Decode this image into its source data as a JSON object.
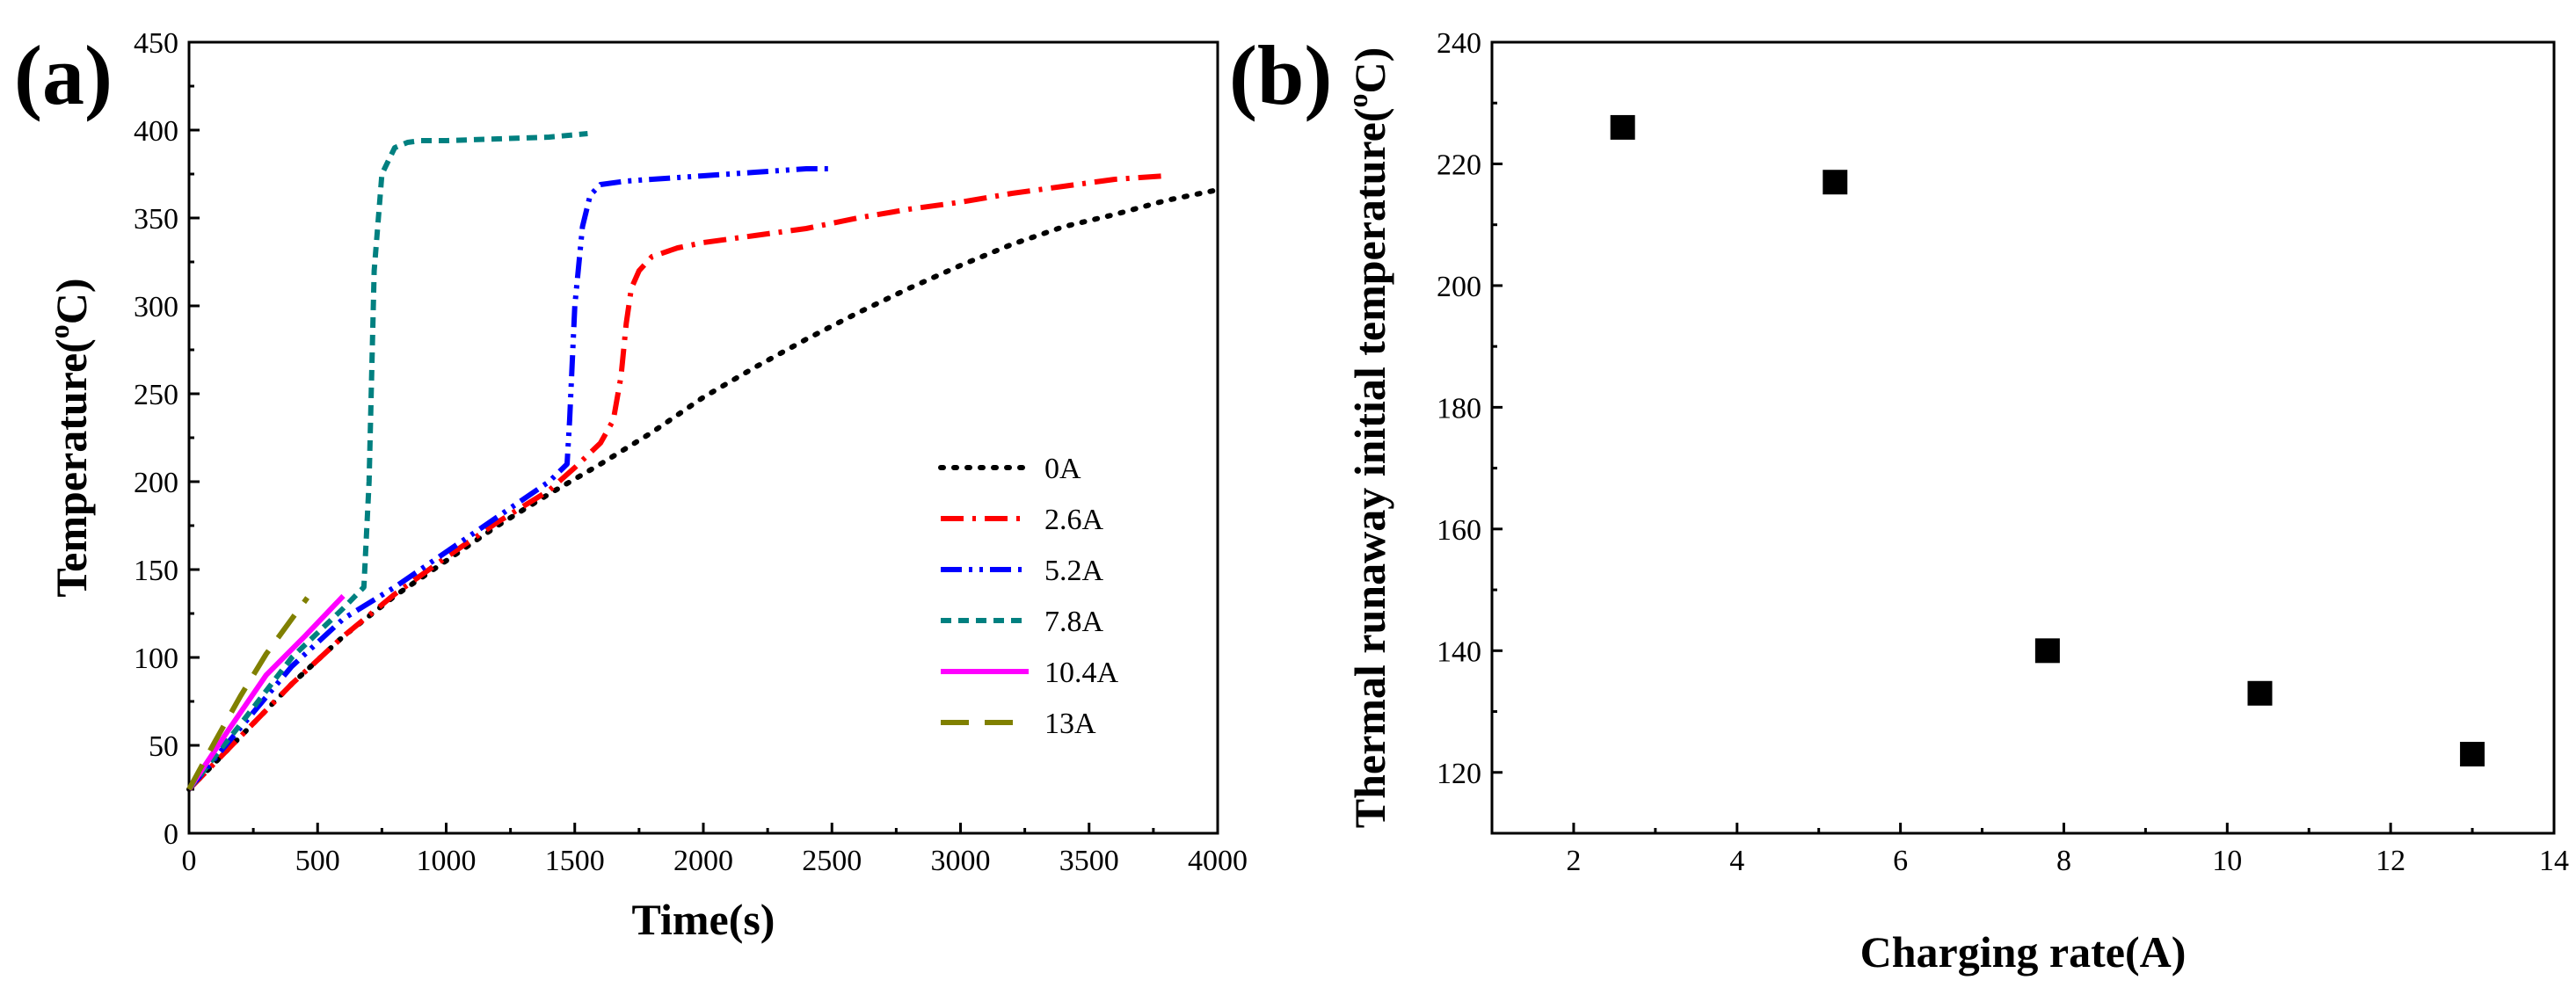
{
  "chart_data": [
    {
      "type": "line",
      "panel_label": "(a)",
      "xlabel": "Time(s)",
      "ylabel_main": "Temperature(",
      "ylabel_sup": "o",
      "ylabel_tail": "C)",
      "xlim": [
        0,
        4000
      ],
      "ylim": [
        0,
        450
      ],
      "xticks": [
        0,
        500,
        1000,
        1500,
        2000,
        2500,
        3000,
        3500,
        4000
      ],
      "yticks": [
        0,
        50,
        100,
        150,
        200,
        250,
        300,
        350,
        400,
        450
      ],
      "legend_position": "right-middle",
      "series": [
        {
          "name": "0A",
          "color": "#000000",
          "dash": "dot",
          "x": [
            0,
            200,
            400,
            600,
            800,
            1000,
            1200,
            1400,
            1600,
            1800,
            2000,
            2200,
            2400,
            2600,
            2800,
            3000,
            3200,
            3400,
            3600,
            3800,
            4000
          ],
          "y": [
            25,
            55,
            85,
            112,
            135,
            155,
            175,
            193,
            210,
            228,
            248,
            265,
            281,
            296,
            310,
            323,
            335,
            345,
            352,
            360,
            366
          ]
        },
        {
          "name": "2.6A",
          "color": "#ff0000",
          "dash": "dashdot",
          "x": [
            0,
            200,
            400,
            600,
            800,
            1000,
            1200,
            1400,
            1500,
            1600,
            1650,
            1680,
            1700,
            1720,
            1750,
            1800,
            1900,
            2000,
            2200,
            2400,
            2600,
            2800,
            3000,
            3200,
            3400,
            3600,
            3800
          ],
          "y": [
            25,
            55,
            85,
            112,
            136,
            157,
            177,
            195,
            208,
            222,
            235,
            260,
            290,
            310,
            320,
            328,
            333,
            336,
            340,
            344,
            350,
            355,
            359,
            364,
            368,
            372,
            374
          ]
        },
        {
          "name": "5.2A",
          "color": "#0000ff",
          "dash": "dashdotdot",
          "x": [
            0,
            200,
            400,
            600,
            800,
            1000,
            1200,
            1300,
            1400,
            1470,
            1480,
            1500,
            1530,
            1560,
            1600,
            1700,
            1800,
            1900,
            2000,
            2100,
            2200,
            2300,
            2400,
            2500
          ],
          "y": [
            25,
            60,
            95,
            122,
            140,
            160,
            180,
            190,
            200,
            210,
            235,
            300,
            345,
            363,
            369,
            371,
            372,
            373,
            374,
            375,
            376,
            377,
            378,
            378
          ]
        },
        {
          "name": "7.8A",
          "color": "#008080",
          "dash": "dash",
          "x": [
            0,
            200,
            400,
            600,
            680,
            700,
            720,
            750,
            800,
            850,
            900,
            1000,
            1200,
            1400,
            1550
          ],
          "y": [
            25,
            62,
            100,
            128,
            140,
            200,
            320,
            375,
            390,
            393,
            394,
            394,
            395,
            396,
            398
          ]
        },
        {
          "name": "10.4A",
          "color": "#ff00ff",
          "dash": "solid",
          "x": [
            0,
            150,
            300,
            450,
            600
          ],
          "y": [
            25,
            58,
            90,
            112,
            135
          ]
        },
        {
          "name": "13A",
          "color": "#808000",
          "dash": "longdash",
          "x": [
            0,
            100,
            200,
            300,
            400,
            460
          ],
          "y": [
            25,
            52,
            78,
            102,
            122,
            134
          ]
        }
      ]
    },
    {
      "type": "scatter",
      "panel_label": "(b)",
      "xlabel": "Charging rate(A)",
      "ylabel_main": "Thermal runaway initial temperature(",
      "ylabel_sup": "o",
      "ylabel_tail": "C)",
      "xlim": [
        1,
        14
      ],
      "ylim": [
        110,
        240
      ],
      "xticks": [
        2,
        4,
        6,
        8,
        10,
        12,
        14
      ],
      "yticks": [
        120,
        140,
        160,
        180,
        200,
        220,
        240
      ],
      "marker": "square",
      "color": "#000000",
      "x": [
        2.6,
        5.2,
        7.8,
        10.4,
        13
      ],
      "y": [
        226,
        217,
        140,
        133,
        123
      ]
    }
  ]
}
